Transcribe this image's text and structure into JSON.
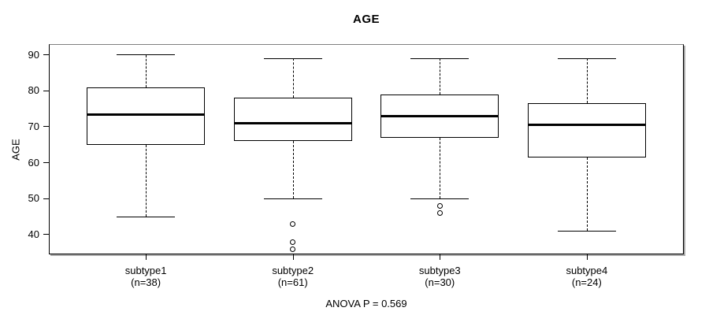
{
  "title": "AGE",
  "chart_data": {
    "type": "boxplot",
    "title": "AGE",
    "xlabel": "",
    "ylabel": "AGE",
    "annotation": "ANOVA P = 0.569",
    "ylim": [
      34.5,
      93
    ],
    "yticks": [
      40,
      50,
      60,
      70,
      80,
      90
    ],
    "grid": false,
    "legend": "none",
    "groups": [
      {
        "label": "subtype1",
        "sublabel": "(n=38)",
        "n": 38,
        "whisker_low": 45,
        "q1": 65,
        "median": 73.5,
        "q3": 81,
        "whisker_high": 90,
        "outliers": []
      },
      {
        "label": "subtype2",
        "sublabel": "(n=61)",
        "n": 61,
        "whisker_low": 50,
        "q1": 66,
        "median": 71,
        "q3": 78,
        "whisker_high": 89,
        "outliers": [
          43,
          38,
          36
        ]
      },
      {
        "label": "subtype3",
        "sublabel": "(n=30)",
        "n": 30,
        "whisker_low": 50,
        "q1": 67,
        "median": 73,
        "q3": 79,
        "whisker_high": 89,
        "outliers": [
          48,
          46
        ]
      },
      {
        "label": "subtype4",
        "sublabel": "(n=24)",
        "n": 24,
        "whisker_low": 41,
        "q1": 61.5,
        "median": 70.5,
        "q3": 76.5,
        "whisker_high": 89,
        "outliers": []
      }
    ]
  },
  "colors": {
    "line": "#000000",
    "frame_top": "#808080",
    "shadow": "#a8a8a8",
    "background": "#ffffff"
  }
}
